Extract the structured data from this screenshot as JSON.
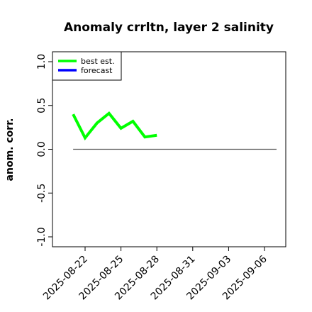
{
  "chart_data": {
    "type": "line",
    "title": "Anomaly crrltn, layer 2 salinity",
    "xlabel": "",
    "ylabel": "anom. corr.",
    "ylim": [
      -1.0,
      1.0
    ],
    "yticks": [
      "-1.0",
      "-0.5",
      "0.0",
      "0.5",
      "1.0"
    ],
    "ytick_values": [
      -1.0,
      -0.5,
      0.0,
      0.5,
      1.0
    ],
    "xlim": [
      "2025-08-20",
      "2025-09-07"
    ],
    "xticks": [
      "2025-08-22",
      "2025-08-25",
      "2025-08-28",
      "2025-08-31",
      "2025-09-03",
      "2025-09-06"
    ],
    "highlight_tick": "2025-08-28",
    "highlight_color": "#228b22",
    "reference_line": {
      "y": 0.0,
      "x_start": "2025-08-21",
      "x_end": "2025-09-07",
      "color": "#555555"
    },
    "series": [
      {
        "name": "best est.",
        "color": "#00ff00",
        "x": [
          "2025-08-21",
          "2025-08-22",
          "2025-08-23",
          "2025-08-24",
          "2025-08-25",
          "2025-08-26",
          "2025-08-27",
          "2025-08-28"
        ],
        "values": [
          0.4,
          0.13,
          0.3,
          0.41,
          0.24,
          0.32,
          0.14,
          0.16
        ]
      },
      {
        "name": "forecast",
        "color": "#0000ff",
        "x": [],
        "values": []
      }
    ],
    "legend": "top-left",
    "grid": false
  }
}
